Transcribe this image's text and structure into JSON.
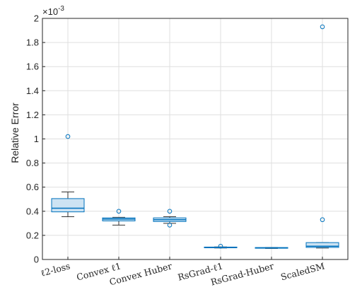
{
  "chart_data": {
    "type": "boxplot",
    "title": "",
    "xlabel": "",
    "ylabel": "Relative Error",
    "y_exponent_label": "×10",
    "y_exponent_value": "-3",
    "ylim": [
      0,
      2
    ],
    "yticks": [
      0,
      0.2,
      0.4,
      0.6,
      0.8,
      1,
      1.2,
      1.4,
      1.6,
      1.8,
      2
    ],
    "ytick_labels": [
      "0",
      "0.2",
      "0.4",
      "0.6",
      "0.8",
      "1",
      "1.2",
      "1.4",
      "1.6",
      "1.8",
      "2"
    ],
    "grid": true,
    "box_fill": "#cde3f3",
    "box_stroke": "#0072bd",
    "median_color": "#0072bd",
    "whisker_color": "#333333",
    "categories": [
      {
        "label": "ℓ2-loss",
        "q1": 0.395,
        "median": 0.425,
        "q3": 0.505,
        "whisker_low": 0.355,
        "whisker_high": 0.56,
        "outliers": [
          1.02
        ]
      },
      {
        "label": "Convex ℓ1",
        "q1": 0.32,
        "median": 0.335,
        "q3": 0.345,
        "whisker_low": 0.285,
        "whisker_high": 0.35,
        "outliers": [
          0.4
        ]
      },
      {
        "label": "Convex Huber",
        "q1": 0.315,
        "median": 0.33,
        "q3": 0.345,
        "whisker_low": 0.3,
        "whisker_high": 0.355,
        "outliers": [
          0.4,
          0.285
        ]
      },
      {
        "label": "RsGrad-ℓ1",
        "q1": 0.097,
        "median": 0.1,
        "q3": 0.103,
        "whisker_low": 0.095,
        "whisker_high": 0.104,
        "outliers": [
          0.11
        ]
      },
      {
        "label": "RsGrad-Huber",
        "q1": 0.094,
        "median": 0.096,
        "q3": 0.099,
        "whisker_low": 0.092,
        "whisker_high": 0.1,
        "outliers": []
      },
      {
        "label": "ScaledSM",
        "q1": 0.1,
        "median": 0.11,
        "q3": 0.14,
        "whisker_low": 0.095,
        "whisker_high": 0.14,
        "outliers": [
          1.93,
          0.33
        ]
      }
    ]
  }
}
